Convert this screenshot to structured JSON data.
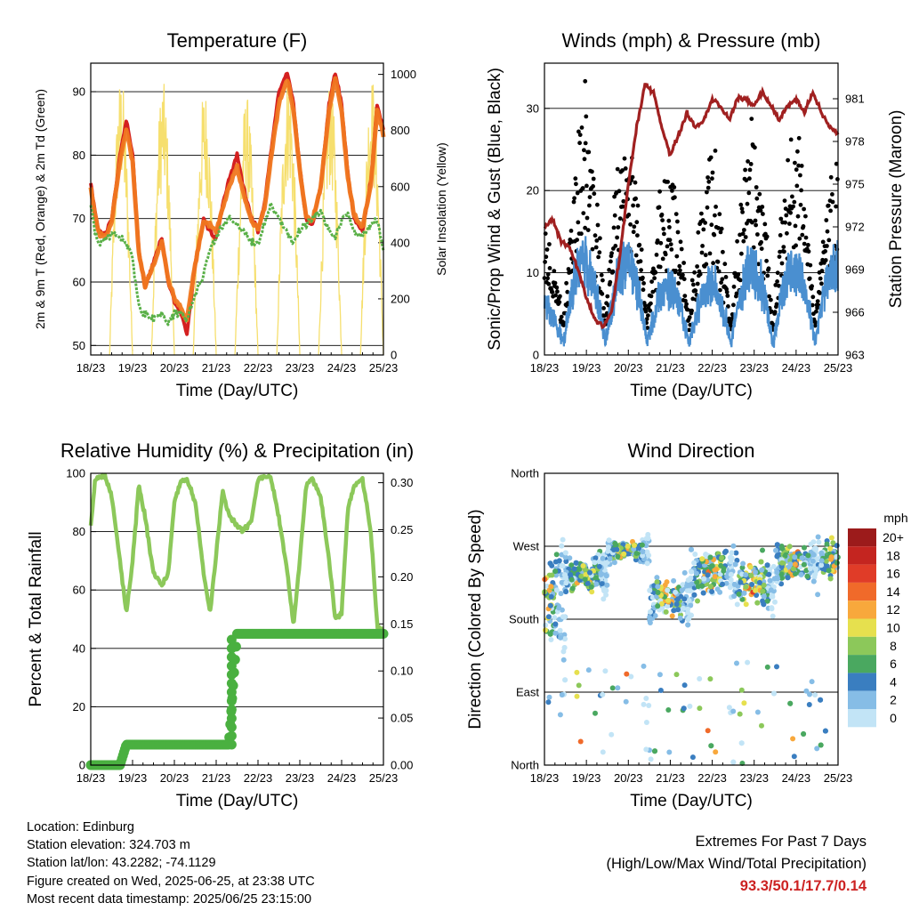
{
  "chart_data": [
    {
      "type": "line",
      "title": "Temperature (F)",
      "xlabel": "Time (Day/UTC)",
      "ylabel": "2m & 9m T (Red, Orange) & 2m Td (Green)",
      "ylabel_right": "Solar Insolation (Yellow)",
      "x_ticks": [
        "18/23",
        "19/23",
        "20/23",
        "21/23",
        "22/23",
        "23/23",
        "24/23",
        "25/23"
      ],
      "ylim": [
        48.5,
        94.5
      ],
      "y_ticks": [
        50,
        60,
        70,
        80,
        90
      ],
      "y2lim": [
        0,
        1040
      ],
      "y2_ticks": [
        0,
        200,
        400,
        600,
        800,
        1000
      ],
      "grid": "horizontal",
      "x_days": [
        0,
        0.1,
        0.2,
        0.35,
        0.5,
        0.7,
        0.85,
        1.0,
        1.15,
        1.3,
        1.5,
        1.7,
        1.85,
        2.0,
        2.15,
        2.3,
        2.5,
        2.7,
        2.85,
        3.0,
        3.15,
        3.3,
        3.5,
        3.65,
        3.85,
        4.0,
        4.15,
        4.3,
        4.5,
        4.7,
        4.85,
        5.0,
        5.15,
        5.3,
        5.5,
        5.7,
        5.85,
        6.0,
        6.15,
        6.3,
        6.5,
        6.7,
        6.85,
        7.0
      ],
      "series": [
        {
          "color": "#d42020",
          "values": [
            75.5,
            71,
            68,
            67.5,
            70,
            80,
            85.5,
            80,
            65,
            59,
            63,
            67,
            60,
            57,
            55,
            52,
            63,
            70,
            68,
            67,
            72,
            76,
            80,
            75,
            70,
            68,
            72,
            80,
            90,
            93,
            88,
            78,
            70,
            69,
            75,
            88,
            93,
            88,
            77,
            70,
            68,
            76,
            88,
            84
          ]
        },
        {
          "color": "#f07820",
          "values": [
            75.2,
            70.5,
            67.5,
            67,
            69.5,
            79,
            84,
            79,
            64.5,
            59.5,
            62.5,
            66.5,
            60.5,
            57.5,
            56,
            54,
            63,
            69.5,
            69,
            68,
            71.5,
            75,
            78,
            74,
            69.5,
            68.5,
            71.5,
            79,
            88,
            92,
            87,
            77.5,
            70.5,
            69.5,
            75,
            87,
            92,
            87,
            76.5,
            70.5,
            68.5,
            75.5,
            87,
            83
          ]
        },
        {
          "color": "#5ab048",
          "values": [
            72,
            68,
            66,
            67,
            67.5,
            67,
            66,
            64,
            56,
            55,
            54,
            55,
            53.5,
            55,
            55,
            54,
            58,
            61,
            65,
            67,
            69,
            70,
            69,
            68,
            66,
            66,
            69,
            72,
            70,
            68,
            66,
            68,
            69,
            70,
            71,
            68,
            67,
            70,
            71,
            68,
            67,
            69,
            70,
            65
          ]
        }
      ],
      "solar_color": "#f6df6e",
      "solar_peaks": [
        830,
        1000,
        980,
        960,
        930,
        1010,
        990,
        1000
      ]
    },
    {
      "type": "scatter",
      "title": "Winds (mph) & Pressure (mb)",
      "xlabel": "Time (Day/UTC)",
      "ylabel": "Sonic/Prop Wind & Gust (Blue, Black)",
      "ylabel_right": "Station Pressure (Maroon)",
      "x_ticks": [
        "18/23",
        "19/23",
        "20/23",
        "21/23",
        "22/23",
        "23/23",
        "24/23",
        "25/23"
      ],
      "ylim": [
        0,
        35.5
      ],
      "y_ticks": [
        0,
        10,
        20,
        30
      ],
      "y2lim": [
        963,
        983.5
      ],
      "y2_ticks": [
        963,
        966,
        969,
        972,
        975,
        978,
        981
      ],
      "grid": "horizontal",
      "pressure_color": "#a02020",
      "pressure_x": [
        0,
        0.2,
        0.4,
        0.6,
        0.8,
        1.0,
        1.2,
        1.4,
        1.6,
        1.8,
        2.0,
        2.2,
        2.4,
        2.6,
        2.8,
        3.0,
        3.2,
        3.4,
        3.6,
        3.8,
        4.0,
        4.2,
        4.4,
        4.6,
        4.8,
        5.0,
        5.2,
        5.4,
        5.6,
        5.8,
        6.0,
        6.2,
        6.4,
        6.6,
        6.8,
        7.0
      ],
      "pressure": [
        972,
        972.5,
        971,
        970.5,
        969,
        967,
        965.5,
        965,
        966,
        970,
        975,
        979,
        982,
        981.5,
        979,
        977,
        978.5,
        980,
        979,
        979.5,
        981,
        980.5,
        979.5,
        981,
        981,
        980.5,
        981.5,
        980.5,
        979.5,
        980.5,
        981,
        980,
        981.5,
        980,
        979,
        978.5
      ],
      "wind_color": "#4a8fd0",
      "gust_color": "#000000",
      "wind_peaks": [
        6,
        13,
        13,
        9,
        9,
        12,
        12,
        12
      ],
      "gust_peaks": [
        9,
        22,
        22,
        17,
        19,
        20,
        20,
        13
      ],
      "max_gust": 33.3
    },
    {
      "type": "line",
      "title": "Relative Humidity (%) & Precipitation (in)",
      "xlabel": "Time (Day/UTC)",
      "ylabel": "Percent & Total Rainfall",
      "x_ticks": [
        "18/23",
        "19/23",
        "20/23",
        "21/23",
        "22/23",
        "23/23",
        "24/23",
        "25/23"
      ],
      "ylim": [
        0,
        100
      ],
      "y_ticks": [
        0,
        20,
        40,
        60,
        80,
        100
      ],
      "y2lim": [
        0,
        0.31
      ],
      "y2_ticks": [
        "0.00",
        "0.05",
        "0.10",
        "0.15",
        "0.20",
        "0.25",
        "0.30"
      ],
      "grid": "horizontal",
      "series": [
        {
          "color": "#8cc85a",
          "values": [
            82,
            97,
            99,
            99,
            92,
            70,
            52,
            70,
            96,
            85,
            66,
            62,
            65,
            90,
            97,
            98,
            90,
            66,
            52,
            72,
            94,
            86,
            82,
            80,
            84,
            98,
            99,
            99,
            85,
            66,
            48,
            70,
            96,
            98,
            92,
            70,
            50,
            52,
            88,
            96,
            98,
            80,
            48,
            46
          ]
        },
        {
          "color": "#4ab040",
          "values": [
            0,
            0,
            0,
            0,
            0,
            0,
            7,
            7,
            7,
            7,
            7,
            7,
            7,
            7,
            7,
            7,
            7,
            7,
            7,
            7,
            7,
            7,
            45,
            45,
            45,
            45,
            45,
            45,
            45,
            45,
            45,
            45,
            45,
            45,
            45,
            45,
            45,
            45,
            45,
            45,
            45,
            45,
            45,
            45
          ]
        }
      ]
    },
    {
      "type": "scatter",
      "title": "Wind Direction",
      "xlabel": "Time (Day/UTC)",
      "ylabel": "Direction (Colored By Speed)",
      "x_ticks": [
        "18/23",
        "19/23",
        "20/23",
        "21/23",
        "22/23",
        "23/23",
        "24/23",
        "25/23"
      ],
      "y_ticks": [
        "North",
        "West",
        "South",
        "East",
        "North"
      ],
      "ylim": [
        0,
        360
      ],
      "grid": "horizontal",
      "colorbar_title": "mph",
      "colorbar_labels": [
        "20+",
        "18",
        "16",
        "14",
        "12",
        "10",
        "8",
        "6",
        "4",
        "2",
        "0"
      ],
      "colorbar_colors": [
        "#9c1b1b",
        "#c42520",
        "#e03c28",
        "#f06a2a",
        "#f8a83c",
        "#e6e04e",
        "#8cc85a",
        "#4aa860",
        "#3a7ec0",
        "#86bde6",
        "#c2e4f6"
      ],
      "direction_centers": [
        200,
        235,
        265,
        205,
        235,
        225,
        250,
        255
      ],
      "direction_spread": [
        110,
        40,
        25,
        45,
        60,
        55,
        40,
        55
      ]
    }
  ],
  "info": {
    "location": "Location: Edinburg",
    "elevation": "Station elevation: 324.703 m",
    "latlon": "Station lat/lon: 43.2282; -74.1129",
    "created": "Figure created on Wed, 2025-06-25, at 23:38 UTC",
    "recent": "Most recent data timestamp: 2025/06/25 23:15:00"
  },
  "extremes": {
    "title": "Extremes For Past 7 Days",
    "subtitle": "(High/Low/Max Wind/Total Precipitation)",
    "values": "93.3/50.1/17.7/0.14"
  }
}
